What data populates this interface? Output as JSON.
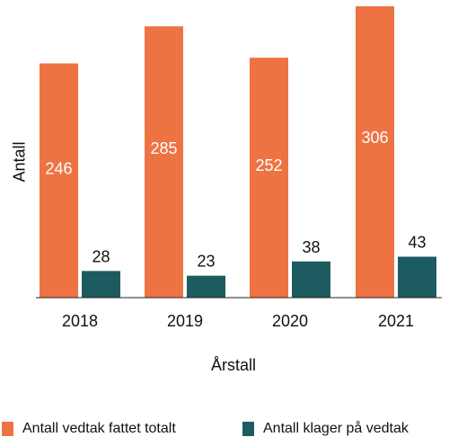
{
  "chart_data": {
    "type": "bar",
    "categories": [
      "2018",
      "2019",
      "2020",
      "2021"
    ],
    "series": [
      {
        "name": "Antall vedtak fattet totalt",
        "values": [
          246,
          285,
          252,
          306
        ],
        "color": "#EE7343"
      },
      {
        "name": "Antall klager på vedtak",
        "values": [
          28,
          23,
          38,
          43
        ],
        "color": "#1C5B5F"
      }
    ],
    "xlabel": "Årstall",
    "ylabel": "Antall",
    "ylim": [
      0,
      306
    ],
    "grid": false,
    "legend_position": "bottom"
  }
}
